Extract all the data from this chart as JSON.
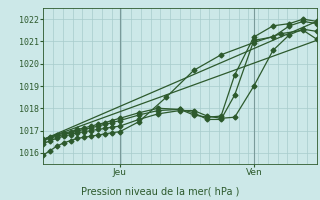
{
  "title": "Pression niveau de la mer( hPa )",
  "bg_color": "#cce8e8",
  "grid_color": "#a8cccc",
  "line_color": "#2d5a2d",
  "ylim": [
    1015.5,
    1022.5
  ],
  "yticks": [
    1016,
    1017,
    1018,
    1019,
    1020,
    1021,
    1022
  ],
  "xlim": [
    0.0,
    1.0
  ],
  "xlabel_jeu": 0.28,
  "xlabel_ven": 0.77,
  "vline_color": "#7a9a9a",
  "lines": [
    {
      "x": [
        0.0,
        0.025,
        0.05,
        0.075,
        0.1,
        0.125,
        0.15,
        0.175,
        0.2,
        0.225,
        0.25,
        0.28,
        0.35,
        0.45,
        0.55,
        0.65,
        0.77,
        0.87,
        0.95,
        1.0
      ],
      "y": [
        1015.9,
        1016.1,
        1016.3,
        1016.45,
        1016.55,
        1016.65,
        1016.7,
        1016.75,
        1016.8,
        1016.85,
        1016.9,
        1016.95,
        1017.4,
        1018.5,
        1019.7,
        1020.4,
        1020.95,
        1021.35,
        1021.5,
        1021.1
      ],
      "marker": "D",
      "ms": 2.5
    },
    {
      "x": [
        0.0,
        0.025,
        0.05,
        0.075,
        0.1,
        0.125,
        0.15,
        0.175,
        0.2,
        0.225,
        0.25,
        0.28,
        0.35,
        0.42,
        0.5,
        0.55,
        0.6,
        0.65,
        0.7,
        0.77,
        0.84,
        0.9,
        0.95,
        1.0
      ],
      "y": [
        1016.4,
        1016.55,
        1016.65,
        1016.75,
        1016.82,
        1016.9,
        1016.95,
        1017.0,
        1017.05,
        1017.1,
        1017.15,
        1017.2,
        1017.5,
        1017.75,
        1017.9,
        1017.9,
        1017.65,
        1017.55,
        1017.6,
        1019.0,
        1020.6,
        1021.3,
        1021.55,
        1021.45
      ],
      "marker": "D",
      "ms": 2.5
    },
    {
      "x": [
        0.0,
        0.025,
        0.05,
        0.075,
        0.1,
        0.125,
        0.15,
        0.175,
        0.2,
        0.225,
        0.25,
        0.28,
        0.35,
        0.42,
        0.5,
        0.55,
        0.6,
        0.65,
        0.7,
        0.77,
        0.84,
        0.9,
        0.95,
        1.0
      ],
      "y": [
        1016.55,
        1016.65,
        1016.75,
        1016.82,
        1016.9,
        1016.98,
        1017.05,
        1017.12,
        1017.2,
        1017.28,
        1017.35,
        1017.45,
        1017.7,
        1017.9,
        1017.95,
        1017.8,
        1017.5,
        1017.5,
        1018.6,
        1021.05,
        1021.2,
        1021.7,
        1021.9,
        1021.8
      ],
      "marker": "D",
      "ms": 2.5
    },
    {
      "x": [
        0.0,
        0.025,
        0.05,
        0.075,
        0.1,
        0.125,
        0.15,
        0.175,
        0.2,
        0.225,
        0.25,
        0.28,
        0.35,
        0.42,
        0.5,
        0.55,
        0.6,
        0.65,
        0.7,
        0.77,
        0.84,
        0.9,
        0.95,
        1.0
      ],
      "y": [
        1016.6,
        1016.7,
        1016.8,
        1016.88,
        1016.95,
        1017.05,
        1017.12,
        1017.2,
        1017.28,
        1017.35,
        1017.45,
        1017.55,
        1017.8,
        1018.0,
        1017.95,
        1017.7,
        1017.6,
        1017.65,
        1019.5,
        1021.2,
        1021.7,
        1021.8,
        1022.0,
        1021.9
      ],
      "marker": "D",
      "ms": 2.5
    },
    {
      "x": [
        0.0,
        1.0
      ],
      "y": [
        1016.6,
        1021.05
      ],
      "marker": null,
      "ms": 0
    },
    {
      "x": [
        0.0,
        1.0
      ],
      "y": [
        1016.6,
        1021.9
      ],
      "marker": null,
      "ms": 0
    }
  ]
}
